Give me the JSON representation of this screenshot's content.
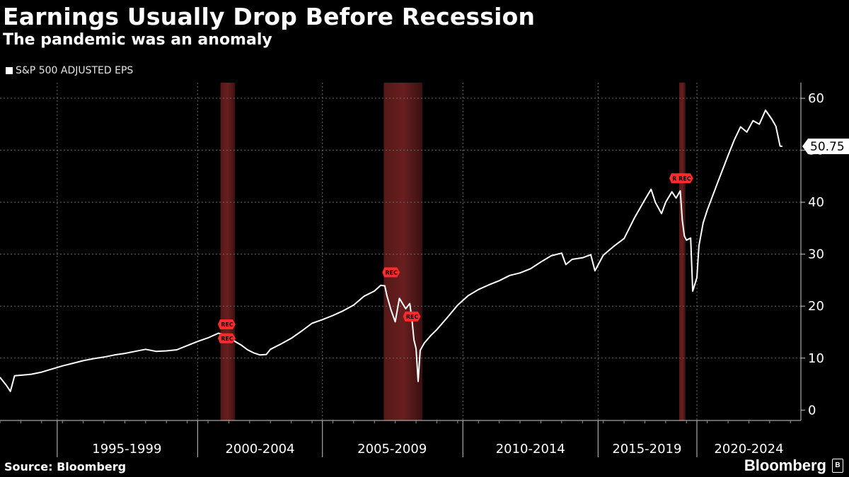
{
  "title": "Earnings Usually Drop Before Recession",
  "subtitle": "The pandemic was an anomaly",
  "legend": {
    "label": "S&P 500 ADJUSTED EPS",
    "color": "#ffffff"
  },
  "source": "Source: Bloomberg",
  "brand": "Bloomberg",
  "brand_badge": "B",
  "chart_data": {
    "type": "line",
    "title": "Earnings Usually Drop Before Recession",
    "series": [
      {
        "name": "S&P 500 ADJUSTED EPS",
        "color": "#ffffff",
        "points": [
          [
            1990.0,
            6.3
          ],
          [
            1990.3,
            4.8
          ],
          [
            1990.5,
            3.6
          ],
          [
            1990.7,
            6.6
          ],
          [
            1991.0,
            6.7
          ],
          [
            1991.5,
            6.9
          ],
          [
            1992.0,
            7.3
          ],
          [
            1992.5,
            7.9
          ],
          [
            1993.0,
            8.5
          ],
          [
            1993.5,
            9.0
          ],
          [
            1994.0,
            9.5
          ],
          [
            1994.5,
            9.9
          ],
          [
            1995.0,
            10.2
          ],
          [
            1995.5,
            10.6
          ],
          [
            1996.0,
            10.9
          ],
          [
            1996.5,
            11.3
          ],
          [
            1997.0,
            11.7
          ],
          [
            1997.5,
            11.3
          ],
          [
            1998.0,
            11.4
          ],
          [
            1998.5,
            11.6
          ],
          [
            1999.0,
            12.4
          ],
          [
            1999.5,
            13.2
          ],
          [
            2000.0,
            13.9
          ],
          [
            2000.5,
            14.8
          ],
          [
            2000.8,
            14.5
          ],
          [
            2001.0,
            14.0
          ],
          [
            2001.3,
            13.2
          ],
          [
            2001.6,
            12.5
          ],
          [
            2001.9,
            11.6
          ],
          [
            2002.2,
            11.0
          ],
          [
            2002.5,
            10.6
          ],
          [
            2002.8,
            10.7
          ],
          [
            2003.0,
            11.7
          ],
          [
            2003.5,
            12.7
          ],
          [
            2004.0,
            13.8
          ],
          [
            2004.5,
            15.2
          ],
          [
            2005.0,
            16.7
          ],
          [
            2005.5,
            17.4
          ],
          [
            2006.0,
            18.2
          ],
          [
            2006.5,
            19.1
          ],
          [
            2007.0,
            20.2
          ],
          [
            2007.5,
            21.9
          ],
          [
            2008.0,
            22.9
          ],
          [
            2008.3,
            24.0
          ],
          [
            2008.5,
            23.9
          ],
          [
            2008.6,
            22.0
          ],
          [
            2008.8,
            19.2
          ],
          [
            2009.0,
            17.0
          ],
          [
            2009.2,
            21.5
          ],
          [
            2009.5,
            19.5
          ],
          [
            2009.7,
            20.5
          ],
          [
            2009.8,
            17.5
          ],
          [
            2009.9,
            13.5
          ],
          [
            2010.0,
            11.8
          ],
          [
            2010.1,
            5.5
          ],
          [
            2010.2,
            11.5
          ],
          [
            2010.4,
            12.9
          ],
          [
            2010.7,
            14.3
          ],
          [
            2011.0,
            15.5
          ],
          [
            2011.5,
            17.8
          ],
          [
            2012.0,
            20.2
          ],
          [
            2012.5,
            22.0
          ],
          [
            2013.0,
            23.2
          ],
          [
            2013.5,
            24.1
          ],
          [
            2014.0,
            24.9
          ],
          [
            2014.5,
            25.9
          ],
          [
            2015.0,
            26.4
          ],
          [
            2015.5,
            27.2
          ],
          [
            2016.0,
            28.5
          ],
          [
            2016.5,
            29.7
          ],
          [
            2017.0,
            30.2
          ],
          [
            2017.2,
            28.0
          ],
          [
            2017.5,
            29.0
          ],
          [
            2018.0,
            29.3
          ],
          [
            2018.4,
            29.9
          ],
          [
            2018.6,
            26.8
          ],
          [
            2019.0,
            29.8
          ],
          [
            2019.5,
            31.5
          ],
          [
            2020.0,
            33.0
          ],
          [
            2020.5,
            37.0
          ],
          [
            2021.0,
            40.5
          ],
          [
            2021.3,
            42.5
          ],
          [
            2021.5,
            40.0
          ],
          [
            2021.8,
            37.8
          ],
          [
            2022.0,
            40.0
          ],
          [
            2022.3,
            42.0
          ],
          [
            2022.5,
            40.8
          ],
          [
            2022.7,
            42.2
          ],
          [
            2022.8,
            36.5
          ],
          [
            2022.9,
            33.5
          ],
          [
            2023.0,
            32.7
          ],
          [
            2023.2,
            33.1
          ],
          [
            2023.3,
            22.9
          ],
          [
            2023.5,
            25.5
          ],
          [
            2023.6,
            31.6
          ],
          [
            2023.8,
            36.0
          ],
          [
            2024.0,
            38.5
          ],
          [
            2024.5,
            43.8
          ],
          [
            2025.0,
            49.0
          ],
          [
            2025.3,
            52.0
          ],
          [
            2025.6,
            54.5
          ],
          [
            2025.9,
            53.5
          ],
          [
            2026.2,
            55.7
          ],
          [
            2026.5,
            55.0
          ],
          [
            2026.8,
            57.7
          ],
          [
            2027.1,
            56.0
          ],
          [
            2027.3,
            54.6
          ],
          [
            2027.5,
            50.8
          ],
          [
            2027.6,
            50.75
          ]
        ]
      }
    ],
    "last_value": {
      "value": 50.75,
      "label": "50.75"
    },
    "x_range": [
      1990,
      2028.5
    ],
    "y_range": [
      -2,
      63
    ],
    "y_ticks": [
      0,
      10,
      20,
      30,
      40,
      50,
      60
    ],
    "y_tick_labels": [
      "0",
      "10",
      "20",
      "30",
      "40",
      "50",
      "60"
    ],
    "x_dividers": [
      1992.75,
      1999.5,
      2005.5,
      2012.25,
      2018.75,
      2023.5
    ],
    "x_categories": [
      {
        "label": "1995-1999",
        "x": 1996.1
      },
      {
        "label": "2000-2004",
        "x": 2002.5
      },
      {
        "label": "2005-2009",
        "x": 2008.85
      },
      {
        "label": "2010-2014",
        "x": 2015.5
      },
      {
        "label": "2015-2019",
        "x": 2021.1
      },
      {
        "label": "2020-2024",
        "x": 2026.0
      }
    ],
    "recession_bands": [
      {
        "start": 2000.6,
        "end": 2001.3
      },
      {
        "start": 2008.45,
        "end": 2010.3
      },
      {
        "start": 2022.65,
        "end": 2022.95
      }
    ],
    "rec_markers": [
      {
        "x": 2000.95,
        "y": 16.5,
        "label": "REC"
      },
      {
        "x": 2000.95,
        "y": 13.8,
        "label": "REC"
      },
      {
        "x": 2008.85,
        "y": 26.5,
        "label": "REC"
      },
      {
        "x": 2009.85,
        "y": 18.0,
        "label": "REC"
      },
      {
        "x": 2022.65,
        "y": 44.6,
        "label": "REC"
      },
      {
        "x": 2022.95,
        "y": 44.6,
        "label": "REC"
      }
    ],
    "grid": true
  }
}
